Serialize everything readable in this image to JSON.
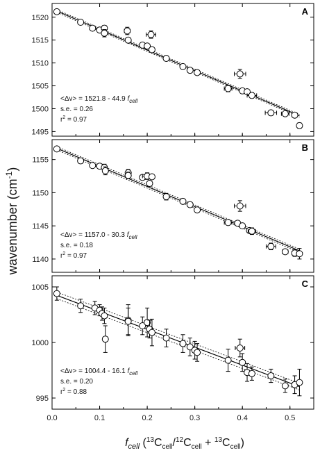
{
  "figure": {
    "ylabel": "wavenumber (cm-1)",
    "ylabel_main": "wavenumber (cm",
    "ylabel_sup": "-1",
    "ylabel_close": ")",
    "xlabel": {
      "f": "f",
      "cell": "cell",
      "open": " (",
      "n13a": "13",
      "C1": "C",
      "cell1": "cell",
      "slash": "/",
      "n12": "12",
      "C2": "C",
      "cell2": "cell",
      "plus": " + ",
      "n13b": "13",
      "C3": "C",
      "cell3": "cell",
      "close": ")"
    }
  },
  "chart_data": [
    {
      "panel": "A",
      "type": "scatter",
      "xlim": [
        0.0,
        0.55
      ],
      "ylim": [
        1494,
        1523
      ],
      "xticks": [
        0.0,
        0.1,
        0.2,
        0.3,
        0.4,
        0.5
      ],
      "yticks": [
        1495,
        1500,
        1505,
        1510,
        1515,
        1520
      ],
      "fit": {
        "intercept": 1521.8,
        "slope": -44.9,
        "band": 0.3
      },
      "annotation": {
        "eq_prefix": "<Δν> = 1521.8 - 44.9 ",
        "eq_f": "f",
        "eq_sub": "cell",
        "se": "s.e. = 0.26",
        "r2_prefix": "r",
        "r2_sup": "2",
        "r2_suffix": " = 0.97"
      },
      "points": [
        {
          "x": 0.01,
          "y": 1521.2,
          "ex": 0,
          "ey": 0
        },
        {
          "x": 0.06,
          "y": 1518.9,
          "ex": 0,
          "ey": 0
        },
        {
          "x": 0.085,
          "y": 1517.6,
          "ex": 0,
          "ey": 0
        },
        {
          "x": 0.1,
          "y": 1517.2,
          "ex": 0,
          "ey": 0
        },
        {
          "x": 0.11,
          "y": 1517.6,
          "ex": 0,
          "ey": 0.6
        },
        {
          "x": 0.11,
          "y": 1516.5,
          "ex": 0,
          "ey": 0.8
        },
        {
          "x": 0.158,
          "y": 1517.0,
          "ex": 0.006,
          "ey": 0.8
        },
        {
          "x": 0.16,
          "y": 1515.0,
          "ex": 0,
          "ey": 0
        },
        {
          "x": 0.19,
          "y": 1513.9,
          "ex": 0,
          "ey": 0
        },
        {
          "x": 0.2,
          "y": 1513.7,
          "ex": 0,
          "ey": 0
        },
        {
          "x": 0.208,
          "y": 1516.2,
          "ex": 0.01,
          "ey": 0.8
        },
        {
          "x": 0.21,
          "y": 1512.9,
          "ex": 0,
          "ey": 0
        },
        {
          "x": 0.24,
          "y": 1511.0,
          "ex": 0,
          "ey": 0
        },
        {
          "x": 0.275,
          "y": 1509.2,
          "ex": 0,
          "ey": 0
        },
        {
          "x": 0.29,
          "y": 1508.4,
          "ex": 0,
          "ey": 0
        },
        {
          "x": 0.305,
          "y": 1507.9,
          "ex": 0,
          "ey": 0.4
        },
        {
          "x": 0.37,
          "y": 1504.4,
          "ex": 0.008,
          "ey": 0.7
        },
        {
          "x": 0.395,
          "y": 1507.6,
          "ex": 0.012,
          "ey": 1.0
        },
        {
          "x": 0.4,
          "y": 1503.9,
          "ex": 0,
          "ey": 0
        },
        {
          "x": 0.41,
          "y": 1503.7,
          "ex": 0,
          "ey": 0
        },
        {
          "x": 0.42,
          "y": 1502.9,
          "ex": 0.01,
          "ey": 0.6
        },
        {
          "x": 0.46,
          "y": 1499.1,
          "ex": 0.012,
          "ey": 0
        },
        {
          "x": 0.49,
          "y": 1498.9,
          "ex": 0.008,
          "ey": 0
        },
        {
          "x": 0.51,
          "y": 1498.6,
          "ex": 0.006,
          "ey": 0.5
        },
        {
          "x": 0.52,
          "y": 1496.3,
          "ex": 0,
          "ey": 0.6
        }
      ]
    },
    {
      "panel": "B",
      "type": "scatter",
      "xlim": [
        0.0,
        0.55
      ],
      "ylim": [
        1138,
        1158
      ],
      "xticks": [
        0.0,
        0.1,
        0.2,
        0.3,
        0.4,
        0.5
      ],
      "yticks": [
        1140,
        1145,
        1150,
        1155
      ],
      "fit": {
        "intercept": 1157.0,
        "slope": -30.3,
        "band": 0.25
      },
      "annotation": {
        "eq_prefix": "<Δν> = 1157.0 - 30.3 ",
        "eq_f": "f",
        "eq_sub": "cell",
        "se": "s.e. = 0.18",
        "r2_prefix": "r",
        "r2_sup": "2",
        "r2_suffix": " = 0.97"
      },
      "points": [
        {
          "x": 0.01,
          "y": 1156.6,
          "ex": 0,
          "ey": 0
        },
        {
          "x": 0.06,
          "y": 1154.8,
          "ex": 0,
          "ey": 0
        },
        {
          "x": 0.085,
          "y": 1154.1,
          "ex": 0,
          "ey": 0
        },
        {
          "x": 0.1,
          "y": 1154.0,
          "ex": 0,
          "ey": 0
        },
        {
          "x": 0.11,
          "y": 1153.8,
          "ex": 0,
          "ey": 0.5
        },
        {
          "x": 0.112,
          "y": 1153.3,
          "ex": 0,
          "ey": 0.6
        },
        {
          "x": 0.16,
          "y": 1153.0,
          "ex": 0,
          "ey": 0.5
        },
        {
          "x": 0.16,
          "y": 1152.6,
          "ex": 0,
          "ey": 0.5
        },
        {
          "x": 0.19,
          "y": 1152.3,
          "ex": 0,
          "ey": 0
        },
        {
          "x": 0.2,
          "y": 1152.5,
          "ex": 0.01,
          "ey": 0.5
        },
        {
          "x": 0.205,
          "y": 1151.4,
          "ex": 0,
          "ey": 0
        },
        {
          "x": 0.21,
          "y": 1152.4,
          "ex": 0,
          "ey": 0
        },
        {
          "x": 0.24,
          "y": 1149.4,
          "ex": 0,
          "ey": 0.5
        },
        {
          "x": 0.275,
          "y": 1148.7,
          "ex": 0,
          "ey": 0
        },
        {
          "x": 0.29,
          "y": 1148.2,
          "ex": 0,
          "ey": 0
        },
        {
          "x": 0.305,
          "y": 1147.4,
          "ex": 0,
          "ey": 0.4
        },
        {
          "x": 0.37,
          "y": 1145.5,
          "ex": 0.008,
          "ey": 0
        },
        {
          "x": 0.39,
          "y": 1145.4,
          "ex": 0,
          "ey": 0
        },
        {
          "x": 0.395,
          "y": 1148.0,
          "ex": 0.012,
          "ey": 0.8
        },
        {
          "x": 0.4,
          "y": 1145.0,
          "ex": 0,
          "ey": 0
        },
        {
          "x": 0.415,
          "y": 1144.3,
          "ex": 0,
          "ey": 0
        },
        {
          "x": 0.42,
          "y": 1144.2,
          "ex": 0.008,
          "ey": 0.5
        },
        {
          "x": 0.46,
          "y": 1141.9,
          "ex": 0.01,
          "ey": 0.5
        },
        {
          "x": 0.49,
          "y": 1141.1,
          "ex": 0.006,
          "ey": 0
        },
        {
          "x": 0.51,
          "y": 1140.9,
          "ex": 0.006,
          "ey": 0.5
        },
        {
          "x": 0.52,
          "y": 1140.8,
          "ex": 0,
          "ey": 0.8
        }
      ]
    },
    {
      "panel": "C",
      "type": "scatter",
      "xlim": [
        0.0,
        0.55
      ],
      "ylim": [
        994,
        1006
      ],
      "xticks": [
        0.0,
        0.1,
        0.2,
        0.3,
        0.4,
        0.5
      ],
      "yticks": [
        995,
        1000,
        1005
      ],
      "fit": {
        "intercept": 1004.4,
        "slope": -16.1,
        "band": 0.3
      },
      "annotation": {
        "eq_prefix": "<Δν> = 1004.4 - 16.1 ",
        "eq_f": "f",
        "eq_sub": "cell",
        "se": "s.e. = 0.20",
        "r2_prefix": "r",
        "r2_sup": "2",
        "r2_suffix": " = 0.88"
      },
      "points": [
        {
          "x": 0.01,
          "y": 1004.4,
          "ex": 0,
          "ey": 0.6
        },
        {
          "x": 0.06,
          "y": 1003.3,
          "ex": 0,
          "ey": 0.6
        },
        {
          "x": 0.09,
          "y": 1003.1,
          "ex": 0,
          "ey": 0.6
        },
        {
          "x": 0.1,
          "y": 1002.9,
          "ex": 0,
          "ey": 0.5
        },
        {
          "x": 0.105,
          "y": 1002.6,
          "ex": 0,
          "ey": 0.6
        },
        {
          "x": 0.11,
          "y": 1002.4,
          "ex": 0,
          "ey": 0.7
        },
        {
          "x": 0.112,
          "y": 1000.3,
          "ex": 0,
          "ey": 1.2
        },
        {
          "x": 0.16,
          "y": 1002.0,
          "ex": 0,
          "ey": 1.4
        },
        {
          "x": 0.16,
          "y": 1001.9,
          "ex": 0,
          "ey": 1.2
        },
        {
          "x": 0.19,
          "y": 1001.5,
          "ex": 0,
          "ey": 0.8
        },
        {
          "x": 0.2,
          "y": 1001.8,
          "ex": 0,
          "ey": 1.3
        },
        {
          "x": 0.205,
          "y": 1001.2,
          "ex": 0,
          "ey": 0.8
        },
        {
          "x": 0.21,
          "y": 1000.9,
          "ex": 0,
          "ey": 1.2
        },
        {
          "x": 0.24,
          "y": 1000.4,
          "ex": 0,
          "ey": 0.8
        },
        {
          "x": 0.275,
          "y": 999.9,
          "ex": 0,
          "ey": 0.8
        },
        {
          "x": 0.29,
          "y": 999.6,
          "ex": 0,
          "ey": 0.8
        },
        {
          "x": 0.3,
          "y": 999.3,
          "ex": 0,
          "ey": 0.8
        },
        {
          "x": 0.305,
          "y": 999.1,
          "ex": 0,
          "ey": 0.8
        },
        {
          "x": 0.37,
          "y": 998.4,
          "ex": 0,
          "ey": 1.0
        },
        {
          "x": 0.395,
          "y": 999.5,
          "ex": 0.01,
          "ey": 0.8
        },
        {
          "x": 0.4,
          "y": 998.2,
          "ex": 0,
          "ey": 0.8
        },
        {
          "x": 0.41,
          "y": 997.3,
          "ex": 0,
          "ey": 0.8
        },
        {
          "x": 0.42,
          "y": 997.2,
          "ex": 0,
          "ey": 0.6
        },
        {
          "x": 0.46,
          "y": 997.0,
          "ex": 0,
          "ey": 0.6
        },
        {
          "x": 0.49,
          "y": 996.1,
          "ex": 0,
          "ey": 0.6
        },
        {
          "x": 0.51,
          "y": 996.2,
          "ex": 0,
          "ey": 0.8
        },
        {
          "x": 0.52,
          "y": 996.4,
          "ex": 0,
          "ey": 1.2
        }
      ]
    }
  ]
}
